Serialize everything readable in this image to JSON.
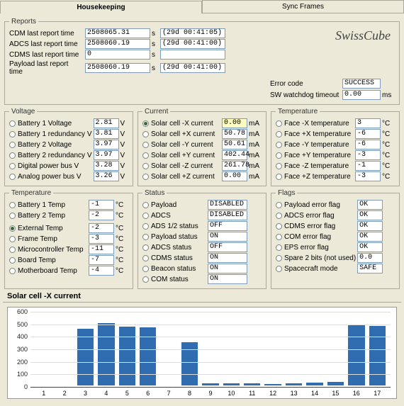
{
  "tabs": {
    "housekeeping": "Housekeeping",
    "sync": "Sync Frames"
  },
  "reports": {
    "legend": "Reports",
    "rows": [
      {
        "label": "CDM last report time",
        "t": "2508065.31",
        "suffix": "s",
        "rel": "(29d 00:41:05)"
      },
      {
        "label": "ADCS last report time",
        "t": "2508060.19",
        "suffix": "s",
        "rel": "(29d 00:41:00)"
      },
      {
        "label": "CDMS last report time",
        "t": "0",
        "suffix": "s",
        "rel": ""
      },
      {
        "label": "Payload last report time",
        "t": "2508060.19",
        "suffix": "s",
        "rel": "(29d 00:41:00)"
      }
    ]
  },
  "logo": "SwissCube",
  "error": {
    "code_label": "Error code",
    "code_val": "SUCCESS",
    "wd_label": "SW watchdog timeout",
    "wd_val": "0.00",
    "wd_unit": "ms"
  },
  "voltage": {
    "legend": "Voltage",
    "items": [
      {
        "label": "Battery 1 Voltage",
        "val": "2.81",
        "unit": "V",
        "checked": false
      },
      {
        "label": "Battery 1 redundancy V",
        "val": "3.81",
        "unit": "V",
        "checked": false
      },
      {
        "label": "Battery 2 Voltage",
        "val": "3.97",
        "unit": "V",
        "checked": false
      },
      {
        "label": "Battery 2 redundancy V",
        "val": "3.97",
        "unit": "V",
        "checked": false
      },
      {
        "label": "Digital power bus V",
        "val": "3.28",
        "unit": "V",
        "checked": false
      },
      {
        "label": "Analog power bus V",
        "val": "3.26",
        "unit": "V",
        "checked": false
      }
    ]
  },
  "current": {
    "legend": "Current",
    "items": [
      {
        "label": "Solar cell -X current",
        "val": "0.00",
        "unit": "mA",
        "checked": true,
        "hl": true
      },
      {
        "label": "Solar cell +X current",
        "val": "50.78",
        "unit": "mA",
        "checked": false
      },
      {
        "label": "Solar cell -Y current",
        "val": "50.61",
        "unit": "mA",
        "checked": false
      },
      {
        "label": "Solar cell +Y current",
        "val": "402.44",
        "unit": "mA",
        "checked": false
      },
      {
        "label": "Solar cell -Z current",
        "val": "261.78",
        "unit": "mA",
        "checked": false
      },
      {
        "label": "Solar cell +Z current",
        "val": "0.00",
        "unit": "mA",
        "checked": false
      }
    ]
  },
  "tempface": {
    "legend": "Temperature",
    "items": [
      {
        "label": "Face -X temperature",
        "val": "3",
        "unit": "°C",
        "checked": false
      },
      {
        "label": "Face +X temperature",
        "val": "-6",
        "unit": "°C",
        "checked": false
      },
      {
        "label": "Face -Y temperature",
        "val": "-6",
        "unit": "°C",
        "checked": false
      },
      {
        "label": "Face +Y temperature",
        "val": "-3",
        "unit": "°C",
        "checked": false
      },
      {
        "label": "Face -Z temperature",
        "val": "-1",
        "unit": "°C",
        "checked": false
      },
      {
        "label": "Face +Z temperature",
        "val": "-3",
        "unit": "°C",
        "checked": false
      }
    ]
  },
  "tempcomp": {
    "legend": "Temperature",
    "groupA": [
      {
        "label": "Battery 1 Temp",
        "val": "-1",
        "unit": "°C",
        "checked": false
      },
      {
        "label": "Battery 2 Temp",
        "val": "-2",
        "unit": "°C",
        "checked": false
      }
    ],
    "groupB": [
      {
        "label": "External Temp",
        "val": "-2",
        "unit": "°C",
        "checked": true
      },
      {
        "label": "Frame Temp",
        "val": "-3",
        "unit": "°C",
        "checked": false
      },
      {
        "label": "Microcontroller Temp",
        "val": "-11",
        "unit": "°C",
        "checked": false
      },
      {
        "label": "Board Temp",
        "val": "-7",
        "unit": "°C",
        "checked": false
      },
      {
        "label": "Motherboard Temp",
        "val": "-4",
        "unit": "°C",
        "checked": false
      }
    ]
  },
  "status": {
    "legend": "Status",
    "items": [
      {
        "label": "Payload",
        "val": "DISABLED",
        "checked": false
      },
      {
        "label": "ADCS",
        "val": "DISABLED",
        "checked": false
      },
      {
        "label": "ADS 1/2 status",
        "val": "OFF",
        "checked": false
      },
      {
        "label": "Payload status",
        "val": "ON",
        "checked": false
      },
      {
        "label": "ADCS status",
        "val": "OFF",
        "checked": false
      },
      {
        "label": "CDMS status",
        "val": "ON",
        "checked": false
      },
      {
        "label": "Beacon status",
        "val": "ON",
        "checked": false
      },
      {
        "label": "COM status",
        "val": "ON",
        "checked": false
      }
    ]
  },
  "flags": {
    "legend": "Flags",
    "items": [
      {
        "label": "Payload error flag",
        "val": "OK",
        "checked": false
      },
      {
        "label": "ADCS error flag",
        "val": "OK",
        "checked": false
      },
      {
        "label": "CDMS error flag",
        "val": "OK",
        "checked": false
      },
      {
        "label": "COM error flag",
        "val": "OK",
        "checked": false
      },
      {
        "label": "EPS error flag",
        "val": "OK",
        "checked": false
      },
      {
        "label": "Spare 2 bits (not used)",
        "val": "0.0",
        "checked": false
      },
      {
        "label": "Spacecraft mode",
        "val": "SAFE",
        "checked": false
      }
    ]
  },
  "chart": {
    "title": "Solar cell -X current",
    "type": "bar",
    "categories": [
      "1",
      "2",
      "3",
      "4",
      "5",
      "6",
      "7",
      "8",
      "9",
      "10",
      "11",
      "12",
      "13",
      "14",
      "15",
      "16",
      "17"
    ],
    "values": [
      0,
      0,
      460,
      505,
      480,
      475,
      0,
      350,
      20,
      20,
      15,
      10,
      20,
      25,
      30,
      490,
      485
    ],
    "bar_color": "#2f6db0",
    "background_color": "#ffffff",
    "grid_color": "#dddddd",
    "ylim": [
      0,
      600
    ],
    "ytick_step": 100,
    "title_fontsize": 11,
    "label_fontsize": 9
  }
}
